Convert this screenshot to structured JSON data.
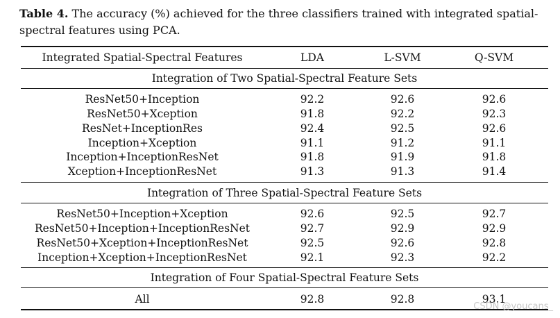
{
  "caption": {
    "label": "Table 4.",
    "text": " The accuracy (%) achieved for the three classifiers trained with integrated spatial-spectral features using PCA."
  },
  "table": {
    "headers": [
      "Integrated Spatial-Spectral Features",
      "LDA",
      "L-SVM",
      "Q-SVM"
    ],
    "sections": [
      {
        "title": "Integration of Two Spatial-Spectral Feature Sets",
        "rows": [
          [
            "ResNet50+Inception",
            "92.2",
            "92.6",
            "92.6"
          ],
          [
            "ResNet50+Xception",
            "91.8",
            "92.2",
            "92.3"
          ],
          [
            "ResNet+InceptionRes",
            "92.4",
            "92.5",
            "92.6"
          ],
          [
            "Inception+Xception",
            "91.1",
            "91.2",
            "91.1"
          ],
          [
            "Inception+InceptionResNet",
            "91.8",
            "91.9",
            "91.8"
          ],
          [
            "Xception+InceptionResNet",
            "91.3",
            "91.3",
            "91.4"
          ]
        ]
      },
      {
        "title": "Integration of Three Spatial-Spectral Feature Sets",
        "rows": [
          [
            "ResNet50+Inception+Xception",
            "92.6",
            "92.5",
            "92.7"
          ],
          [
            "ResNet50+Inception+InceptionResNet",
            "92.7",
            "92.9",
            "92.9"
          ],
          [
            "ResNet50+Xception+InceptionResNet",
            "92.5",
            "92.6",
            "92.8"
          ],
          [
            "Inception+Xception+InceptionResNet",
            "92.1",
            "92.3",
            "92.2"
          ]
        ]
      },
      {
        "title": "Integration of Four Spatial-Spectral Feature Sets",
        "rows": [
          [
            "All",
            "92.8",
            "92.8",
            "93.1"
          ]
        ]
      }
    ]
  },
  "watermark": "CSDN @youcans_"
}
